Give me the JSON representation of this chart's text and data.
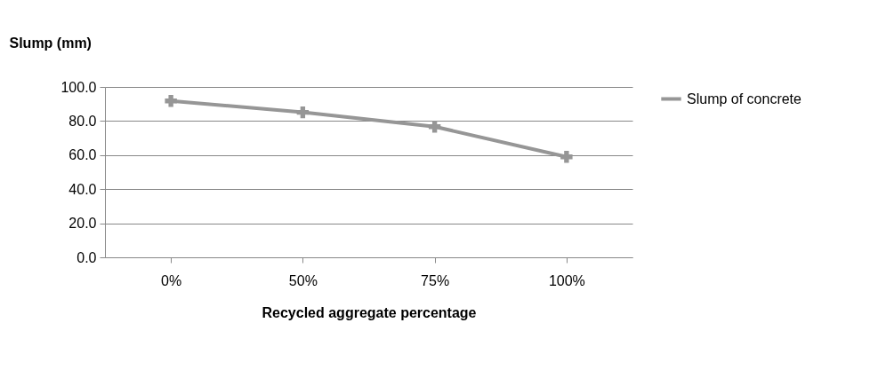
{
  "chart_data": {
    "type": "line",
    "xlabel": "Recycled aggregate percentage",
    "ylabel": "Slump (mm)",
    "categories": [
      "0%",
      "50%",
      "75%",
      "100%"
    ],
    "series": [
      {
        "name": "Slump of concrete",
        "color": "#969696",
        "values": [
          91.8,
          85.1,
          76.7,
          59.0
        ]
      }
    ],
    "ylim": [
      0,
      100
    ],
    "yticks": [
      {
        "value": 0,
        "label": "0.0"
      },
      {
        "value": 20,
        "label": "20.0"
      },
      {
        "value": 40,
        "label": "40.0"
      },
      {
        "value": 60,
        "label": "60.0"
      },
      {
        "value": 80,
        "label": "80.0"
      },
      {
        "value": 100,
        "label": "100.0"
      }
    ],
    "grid": "y",
    "legend": "right",
    "marker": "cross",
    "line_style": "solid"
  }
}
